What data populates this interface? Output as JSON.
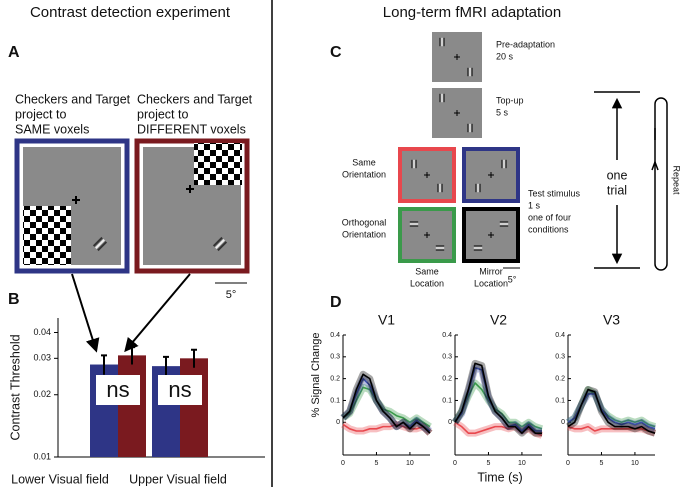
{
  "titles": {
    "left": "Contrast detection experiment",
    "right": "Long-term fMRI adaptation"
  },
  "panel_a": {
    "label": "A",
    "left_caption": [
      "Checkers and Target",
      "project to",
      "SAME voxels"
    ],
    "right_caption": [
      "Checkers and Target",
      "project to",
      "DIFFERENT voxels"
    ],
    "scale": "5°"
  },
  "panel_b": {
    "label": "B"
  },
  "panel_c": {
    "label": "C",
    "pre": [
      "Pre-adaptation",
      "20 s"
    ],
    "topup": [
      "Top-up",
      "5 s"
    ],
    "same_orientation": [
      "Same",
      "Orientation"
    ],
    "orthogonal_orientation": [
      "Orthogonal",
      "Orientation"
    ],
    "test": [
      "Test stimulus",
      "1 s",
      "one of four",
      "conditions"
    ],
    "same_location": [
      "Same",
      "Location"
    ],
    "mirror_location": [
      "Mirror",
      "Location"
    ],
    "scale": "5°",
    "trial": [
      "one",
      "trial"
    ],
    "repeat": "Repeat"
  },
  "panel_d": {
    "label": "D",
    "y_label": "% Signal Change",
    "x_label": "Time (s)"
  },
  "chart_data": [
    {
      "type": "bar",
      "y_label": "Contrast Threshold",
      "log_y": true,
      "categories": [
        "Lower Visual field",
        "Upper Visual field"
      ],
      "series": [
        {
          "color": "#2e3586",
          "values": [
            0.028,
            0.0275
          ],
          "errors": [
            0.003,
            0.003
          ]
        },
        {
          "color": "#7a1a1f",
          "values": [
            0.031,
            0.03
          ],
          "errors": [
            0.003,
            0.003
          ]
        }
      ],
      "annotations": [
        "ns",
        "ns"
      ],
      "ylim": [
        0.01,
        0.047
      ],
      "yticks": [
        0.01,
        0.02,
        0.03,
        0.04
      ]
    },
    {
      "type": "line",
      "title": "V1",
      "x": [
        0,
        1,
        2,
        3,
        4,
        5,
        6,
        7,
        8,
        9,
        10,
        11,
        12,
        13
      ],
      "xlim": [
        0,
        13
      ],
      "xticks": [
        0,
        5,
        10
      ],
      "ylim": [
        -0.15,
        0.4
      ],
      "yticks": [
        0,
        0.1,
        0.2,
        0.3,
        0.4
      ],
      "series": [
        {
          "color": "#e8474d",
          "values": [
            -0.01,
            -0.03,
            -0.04,
            -0.04,
            -0.03,
            -0.03,
            -0.02,
            -0.02,
            -0.01,
            -0.02,
            -0.03,
            -0.03,
            -0.02,
            -0.05
          ]
        },
        {
          "color": "#3a9a4a",
          "values": [
            0.02,
            0.04,
            0.1,
            0.16,
            0.15,
            0.1,
            0.06,
            0.05,
            0.03,
            0.02,
            0.0,
            0.02,
            0.0,
            -0.02
          ]
        },
        {
          "color": "#3b4ea8",
          "values": [
            0.02,
            0.05,
            0.13,
            0.2,
            0.17,
            0.1,
            0.05,
            0.02,
            -0.02,
            0.0,
            -0.02,
            0.01,
            -0.02,
            -0.04
          ]
        },
        {
          "color": "#000000",
          "values": [
            0.02,
            0.05,
            0.15,
            0.22,
            0.2,
            0.1,
            0.05,
            0.02,
            -0.02,
            0.0,
            -0.03,
            0.0,
            -0.02,
            -0.05
          ]
        }
      ]
    },
    {
      "type": "line",
      "title": "V2",
      "x": [
        0,
        1,
        2,
        3,
        4,
        5,
        6,
        7,
        8,
        9,
        10,
        11,
        12,
        13
      ],
      "xlim": [
        0,
        13
      ],
      "xticks": [
        0,
        5,
        10
      ],
      "ylim": [
        -0.15,
        0.4
      ],
      "yticks": [
        0,
        0.1,
        0.2,
        0.3,
        0.4
      ],
      "series": [
        {
          "color": "#e8474d",
          "values": [
            0.0,
            -0.02,
            -0.05,
            -0.05,
            -0.04,
            -0.03,
            -0.02,
            -0.02,
            -0.03,
            -0.02,
            -0.04,
            -0.03,
            -0.05,
            -0.06
          ]
        },
        {
          "color": "#3a9a4a",
          "values": [
            0.0,
            0.05,
            0.12,
            0.18,
            0.15,
            0.1,
            0.06,
            0.04,
            0.0,
            0.0,
            -0.02,
            0.0,
            -0.02,
            -0.03
          ]
        },
        {
          "color": "#3b4ea8",
          "values": [
            0.0,
            0.04,
            0.14,
            0.25,
            0.24,
            0.11,
            0.05,
            0.02,
            -0.02,
            -0.01,
            -0.04,
            -0.01,
            -0.04,
            -0.04
          ]
        },
        {
          "color": "#000000",
          "values": [
            0.0,
            0.05,
            0.15,
            0.27,
            0.26,
            0.12,
            0.05,
            0.02,
            -0.02,
            -0.02,
            -0.05,
            -0.02,
            -0.05,
            -0.05
          ]
        }
      ]
    },
    {
      "type": "line",
      "title": "V3",
      "x": [
        0,
        1,
        2,
        3,
        4,
        5,
        6,
        7,
        8,
        9,
        10,
        11,
        12,
        13
      ],
      "xlim": [
        0,
        13
      ],
      "xticks": [
        0,
        5,
        10
      ],
      "ylim": [
        -0.15,
        0.4
      ],
      "yticks": [
        0,
        0.1,
        0.2,
        0.3,
        0.4
      ],
      "series": [
        {
          "color": "#e8474d",
          "values": [
            -0.02,
            -0.03,
            -0.03,
            -0.02,
            -0.04,
            -0.03,
            -0.03,
            -0.03,
            -0.03,
            -0.03,
            -0.03,
            -0.03,
            -0.04,
            -0.05
          ]
        },
        {
          "color": "#3a9a4a",
          "values": [
            0.0,
            0.02,
            0.08,
            0.15,
            0.13,
            0.06,
            0.03,
            0.01,
            0.0,
            0.01,
            0.0,
            0.01,
            -0.01,
            -0.02
          ]
        },
        {
          "color": "#3b4ea8",
          "values": [
            0.0,
            0.02,
            0.08,
            0.13,
            0.13,
            0.06,
            0.02,
            0.0,
            -0.01,
            0.0,
            -0.01,
            0.0,
            -0.02,
            -0.03
          ]
        },
        {
          "color": "#000000",
          "values": [
            -0.02,
            0.0,
            0.08,
            0.15,
            0.14,
            0.05,
            0.0,
            -0.02,
            -0.02,
            -0.02,
            -0.03,
            -0.02,
            -0.04,
            -0.05
          ]
        }
      ]
    }
  ]
}
